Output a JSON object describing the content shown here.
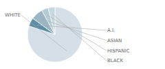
{
  "chart_data": {
    "type": "pie",
    "categories": [
      "WHITE",
      "A.I.",
      "ASIAN",
      "HISPANIC",
      "BLACK"
    ],
    "values": [
      80,
      5,
      7,
      4,
      4
    ],
    "colors": [
      "#d4dfe8",
      "#5c8ea6",
      "#9ab5c4",
      "#b3ccd6",
      "#c5d8e0"
    ]
  }
}
